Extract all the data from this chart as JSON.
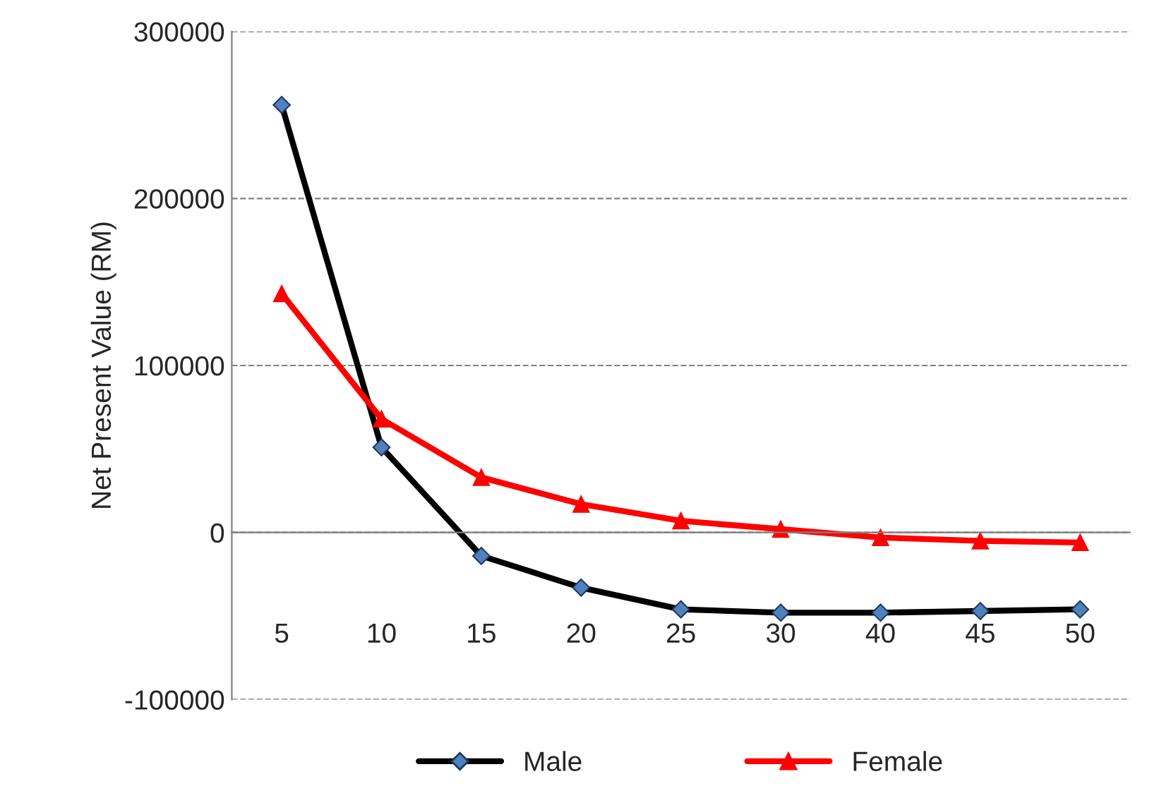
{
  "chart_data": {
    "type": "line",
    "ylabel": "Net Present Value (RM)",
    "categories": [
      "5",
      "10",
      "15",
      "20",
      "25",
      "30",
      "40",
      "45",
      "50"
    ],
    "series": [
      {
        "name": "Male",
        "color": "#000000",
        "marker": "diamond",
        "values": [
          256000,
          51000,
          -14000,
          -33000,
          -46000,
          -48000,
          -48000,
          -47000,
          -46000
        ]
      },
      {
        "name": "Female",
        "color": "#ff0000",
        "marker": "triangle",
        "values": [
          143000,
          68000,
          33000,
          17000,
          7000,
          2000,
          -3000,
          -5000,
          -6000
        ]
      }
    ],
    "ylim": [
      -100000,
      300000
    ],
    "yticks": [
      -100000,
      0,
      100000,
      200000,
      300000
    ],
    "grid": "y",
    "legend": "bottom",
    "line_style": "solid"
  }
}
